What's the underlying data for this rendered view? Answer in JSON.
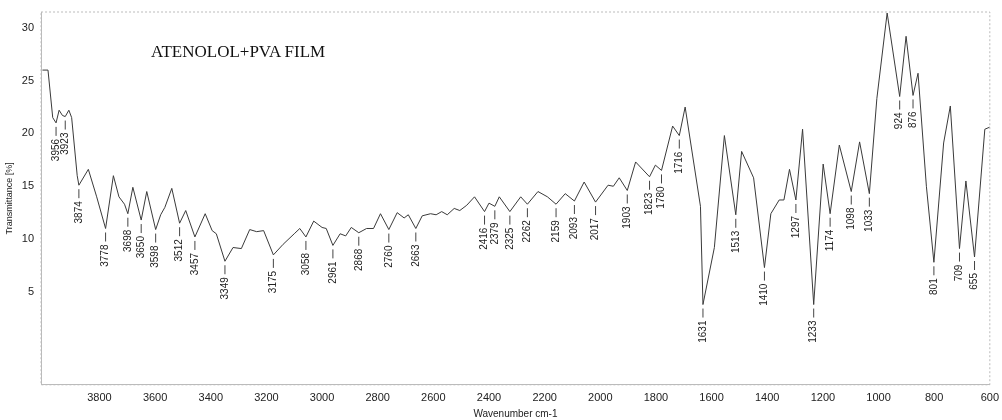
{
  "chart_data": {
    "type": "line",
    "title": "ATENOLOL+PVA FILM",
    "xlabel": "Wavenumber cm-1",
    "ylabel": "Transmittance [%]",
    "xlim": [
      4010,
      600
    ],
    "xticks": [
      3800,
      3600,
      3400,
      3200,
      3000,
      2800,
      2600,
      2400,
      2200,
      2000,
      1800,
      1600,
      1400,
      1200,
      1000,
      800,
      600
    ],
    "ylim": [
      -3.8,
      31.5
    ],
    "yticks": [
      5,
      10,
      15,
      20,
      25,
      30
    ],
    "series": [
      {
        "color": "#3a3a3a",
        "x": [
          4005,
          3985,
          3968,
          3956,
          3945,
          3933,
          3923,
          3910,
          3900,
          3880,
          3874,
          3840,
          3810,
          3778,
          3750,
          3730,
          3710,
          3698,
          3680,
          3650,
          3630,
          3598,
          3580,
          3565,
          3540,
          3512,
          3490,
          3457,
          3420,
          3395,
          3380,
          3349,
          3320,
          3290,
          3260,
          3235,
          3210,
          3175,
          3140,
          3100,
          3080,
          3058,
          3030,
          3000,
          2985,
          2961,
          2935,
          2915,
          2895,
          2868,
          2840,
          2815,
          2790,
          2760,
          2730,
          2705,
          2690,
          2663,
          2640,
          2610,
          2590,
          2570,
          2550,
          2525,
          2505,
          2480,
          2452,
          2416,
          2400,
          2379,
          2363,
          2325,
          2286,
          2262,
          2224,
          2190,
          2159,
          2126,
          2093,
          2058,
          2017,
          1972,
          1953,
          1932,
          1903,
          1873,
          1823,
          1802,
          1780,
          1740,
          1716,
          1695,
          1640,
          1631,
          1590,
          1554,
          1513,
          1492,
          1449,
          1410,
          1387,
          1357,
          1340,
          1320,
          1297,
          1273,
          1233,
          1199,
          1174,
          1141,
          1098,
          1068,
          1033,
          1006,
          969,
          924,
          901,
          876,
          858,
          828,
          801,
          766,
          742,
          709,
          686,
          655,
          618,
          600
        ],
        "values": [
          26,
          26,
          21.5,
          21,
          22.2,
          21.7,
          21.6,
          22.2,
          21.5,
          16,
          15.1,
          16.6,
          14,
          11,
          16,
          14,
          13.3,
          12.4,
          14.9,
          11.8,
          14.5,
          10.9,
          12.3,
          13,
          14.8,
          11.5,
          12.7,
          10.2,
          12.4,
          10.8,
          10.5,
          7.9,
          9.2,
          9.1,
          10.9,
          10.7,
          10.8,
          8.5,
          9.5,
          10.5,
          11,
          10.2,
          11.7,
          11.1,
          11,
          9.4,
          10.5,
          10.3,
          11.1,
          10.6,
          11,
          11,
          12.4,
          10.9,
          12.5,
          12,
          12.3,
          11,
          12.2,
          12.4,
          12.3,
          12.6,
          12.3,
          12.9,
          12.7,
          13.2,
          14,
          12.6,
          13.4,
          13.1,
          14,
          12.6,
          14,
          13.3,
          14.5,
          14,
          13.3,
          14.3,
          13.6,
          15.4,
          13.5,
          15.1,
          15,
          15.8,
          14.6,
          17.3,
          15.9,
          17,
          16.5,
          20.7,
          19.8,
          22.5,
          13.1,
          3.8,
          9.2,
          19.8,
          12.3,
          18.3,
          15.8,
          7.3,
          12.4,
          13.7,
          13.7,
          16.6,
          13.7,
          20.4,
          3.8,
          17.1,
          12.4,
          18.9,
          14.5,
          19.2,
          14.3,
          23.3,
          31.4,
          23.5,
          29.2,
          23.6,
          25.7,
          15,
          7.8,
          19.1,
          22.6,
          9.1,
          15.5,
          8.3,
          20.4,
          20.6
        ]
      }
    ],
    "annotations": [
      {
        "text": "3956",
        "x": 3956,
        "y": 21
      },
      {
        "text": "3923",
        "x": 3923,
        "y": 21.6
      },
      {
        "text": "3874",
        "x": 3874,
        "y": 15.1
      },
      {
        "text": "3778",
        "x": 3778,
        "y": 11
      },
      {
        "text": "3698",
        "x": 3698,
        "y": 12.4
      },
      {
        "text": "3650",
        "x": 3650,
        "y": 11.8
      },
      {
        "text": "3598",
        "x": 3598,
        "y": 10.9
      },
      {
        "text": "3512",
        "x": 3512,
        "y": 11.5
      },
      {
        "text": "3457",
        "x": 3457,
        "y": 10.2
      },
      {
        "text": "3349",
        "x": 3349,
        "y": 7.9
      },
      {
        "text": "3175",
        "x": 3175,
        "y": 8.5
      },
      {
        "text": "3058",
        "x": 3058,
        "y": 10.2
      },
      {
        "text": "2961",
        "x": 2961,
        "y": 9.4
      },
      {
        "text": "2868",
        "x": 2868,
        "y": 10.6
      },
      {
        "text": "2760",
        "x": 2760,
        "y": 10.9
      },
      {
        "text": "2663",
        "x": 2663,
        "y": 11
      },
      {
        "text": "2416",
        "x": 2416,
        "y": 12.6
      },
      {
        "text": "2379",
        "x": 2379,
        "y": 13.1
      },
      {
        "text": "2325",
        "x": 2325,
        "y": 12.6
      },
      {
        "text": "2262",
        "x": 2262,
        "y": 13.3
      },
      {
        "text": "2159",
        "x": 2159,
        "y": 13.3
      },
      {
        "text": "2093",
        "x": 2093,
        "y": 13.6
      },
      {
        "text": "2017",
        "x": 2017,
        "y": 13.5
      },
      {
        "text": "1903",
        "x": 1903,
        "y": 14.6
      },
      {
        "text": "1823",
        "x": 1823,
        "y": 15.9
      },
      {
        "text": "1780",
        "x": 1780,
        "y": 16.5
      },
      {
        "text": "1716",
        "x": 1716,
        "y": 19.8
      },
      {
        "text": "1631",
        "x": 1631,
        "y": 3.8
      },
      {
        "text": "1513",
        "x": 1513,
        "y": 12.3
      },
      {
        "text": "1410",
        "x": 1410,
        "y": 7.3
      },
      {
        "text": "1297",
        "x": 1297,
        "y": 13.7
      },
      {
        "text": "1233",
        "x": 1233,
        "y": 3.8
      },
      {
        "text": "1174",
        "x": 1174,
        "y": 12.4
      },
      {
        "text": "1098",
        "x": 1098,
        "y": 14.5
      },
      {
        "text": "1033",
        "x": 1033,
        "y": 14.3
      },
      {
        "text": "924",
        "x": 924,
        "y": 23.5
      },
      {
        "text": "876",
        "x": 876,
        "y": 23.6
      },
      {
        "text": "801",
        "x": 801,
        "y": 7.8
      },
      {
        "text": "709",
        "x": 709,
        "y": 9.1
      },
      {
        "text": "655",
        "x": 655,
        "y": 8.3
      }
    ]
  }
}
